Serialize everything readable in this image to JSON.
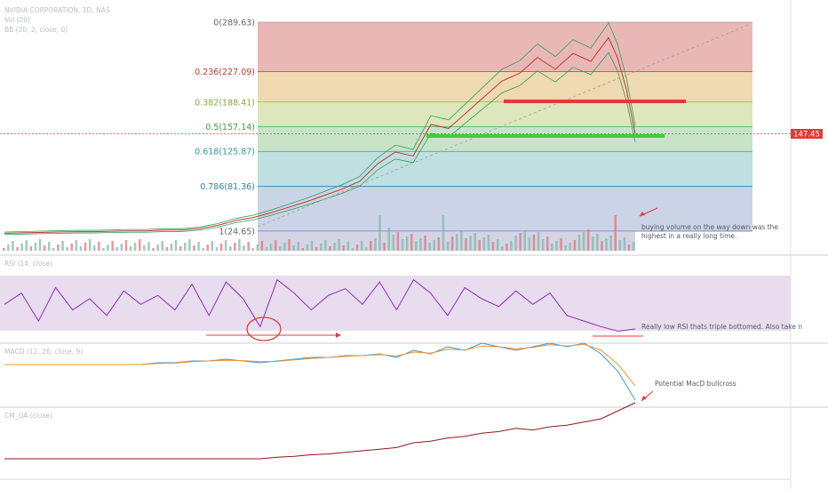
{
  "chart_header": {
    "symbol_title": "NVIDIA CORPORATION, 1D, NAS",
    "line2": "Vol (20)",
    "line3": "BB (20, 2, close, 0)"
  },
  "last_price_label": "147.45",
  "panel_titles": {
    "rsi": "RSI (14, close)",
    "macd": "MACD (12, 26, close, 9)",
    "cmf": "CM_OA (close)"
  },
  "annotations": {
    "volume_note": "buying volume on the way down was the highest in a really long time.",
    "rsi_note": "Really low RSI thats triple bottomed. Also take n",
    "macd_note": "Potential MacD bullcross"
  },
  "colors": {
    "fib_red": "#c0392b",
    "fib_green": "#4caf50",
    "fib_blue": "#2f7fb5",
    "rsi_line": "#8e2bb8",
    "price_red_line": "#e53935",
    "support_green_line": "#33d633",
    "last_price_badge": "#e53935"
  },
  "chart_data": [
    {
      "type": "line",
      "name": "price",
      "fib_levels": [
        {
          "ratio": 0,
          "price": 289.63,
          "label": "0(289.63)"
        },
        {
          "ratio": 0.236,
          "price": 227.09,
          "label": "0.236(227.09)"
        },
        {
          "ratio": 0.382,
          "price": 188.41,
          "label": "0.382(188.41)"
        },
        {
          "ratio": 0.5,
          "price": 157.14,
          "label": "0.5(157.14)"
        },
        {
          "ratio": 0.618,
          "price": 125.87,
          "label": "0.618(125.87)"
        },
        {
          "ratio": 0.786,
          "price": 81.36,
          "label": "0.786(81.36)"
        },
        {
          "ratio": 1,
          "price": 24.65,
          "label": "1(24.65)"
        }
      ],
      "horizontal_lines": [
        {
          "color": "red",
          "price": 186
        },
        {
          "color": "green",
          "price": 152
        }
      ],
      "last_price": 147.45,
      "x": [
        0,
        20,
        40,
        60,
        80,
        100,
        120,
        140,
        160,
        180,
        200,
        220,
        240,
        260,
        280,
        300,
        320,
        340,
        360,
        380,
        400,
        420,
        440,
        460,
        480,
        500,
        520,
        540,
        560,
        580,
        600,
        620,
        640,
        660,
        680,
        690,
        700,
        710
      ],
      "values": [
        22,
        22.5,
        23,
        23.5,
        24,
        24,
        24.5,
        25,
        25,
        26,
        26,
        28,
        32,
        38,
        42,
        48,
        55,
        62,
        70,
        78,
        88,
        110,
        125,
        120,
        160,
        155,
        175,
        195,
        215,
        225,
        245,
        230,
        250,
        240,
        270,
        245,
        205,
        148
      ]
    },
    {
      "type": "line",
      "name": "RSI",
      "ylim": [
        20,
        90
      ],
      "values": [
        50,
        60,
        35,
        65,
        45,
        55,
        40,
        62,
        50,
        58,
        45,
        68,
        40,
        70,
        55,
        30,
        72,
        60,
        45,
        58,
        64,
        50,
        70,
        45,
        72,
        60,
        40,
        65,
        55,
        48,
        62,
        50,
        60,
        40,
        35,
        30,
        26,
        28
      ]
    },
    {
      "type": "line",
      "name": "MACD",
      "series": [
        {
          "values": [
            0,
            0,
            0,
            0,
            0,
            0,
            0,
            0,
            0,
            0.5,
            0.5,
            1,
            1,
            1.5,
            1,
            0.5,
            1,
            1.5,
            2,
            2,
            2.5,
            2.5,
            3,
            2,
            4,
            3,
            5,
            4,
            6,
            5,
            4,
            5,
            6,
            5,
            6,
            3,
            -2,
            -10
          ]
        },
        {
          "values": [
            0,
            0,
            0,
            0,
            0,
            0,
            0,
            0,
            0,
            0.3,
            0.4,
            0.8,
            1,
            1.2,
            1.1,
            0.8,
            0.9,
            1.3,
            1.7,
            2,
            2.3,
            2.5,
            2.8,
            2.4,
            3.5,
            3.2,
            4.3,
            4.1,
            5.2,
            5,
            4.4,
            4.8,
            5.6,
            5.2,
            5.7,
            4,
            0,
            -6
          ]
        }
      ]
    },
    {
      "type": "line",
      "name": "CM_OA",
      "values": [
        10,
        10,
        10,
        10,
        10,
        10,
        10,
        10,
        10,
        10,
        10,
        10,
        10,
        10,
        10,
        10,
        12,
        13,
        15,
        16,
        18,
        20,
        22,
        24,
        30,
        32,
        36,
        38,
        42,
        44,
        48,
        46,
        50,
        52,
        56,
        60,
        70,
        80
      ]
    }
  ]
}
